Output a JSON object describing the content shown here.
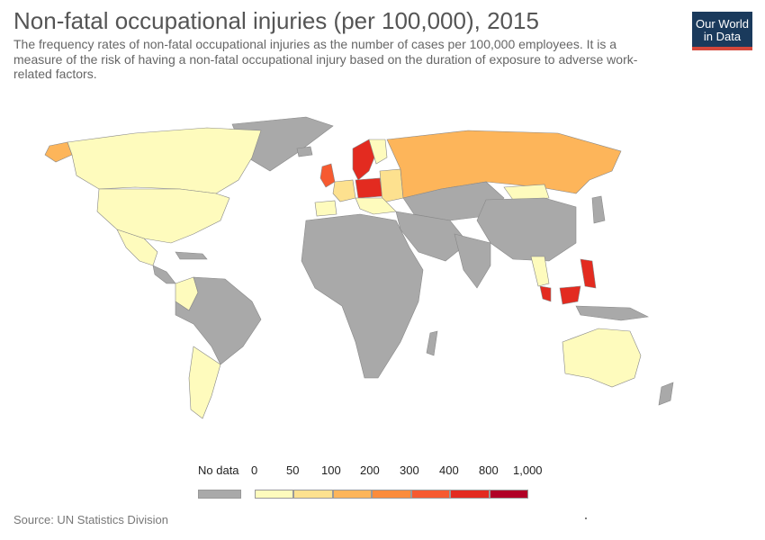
{
  "header": {
    "title": "Non-fatal occupational injuries (per 100,000), 2015",
    "subtitle": "The frequency rates of non-fatal occupational injuries as the number of cases per 100,000 employees. It is a measure of the risk of having a non-fatal occupational injury based on the duration of exposure to adverse work-related factors.",
    "logo_line1": "Our World",
    "logo_line2": "in Data"
  },
  "legend": {
    "no_data_label": "No data",
    "ticks": [
      "0",
      "50",
      "100",
      "200",
      "300",
      "400",
      "800",
      "1,000"
    ]
  },
  "colors": {
    "no_data": "#a9a9a9",
    "bins": [
      "#fefbbd",
      "#fde18f",
      "#fdb55a",
      "#fb8c3c",
      "#f65a30",
      "#e32b20",
      "#b10026"
    ],
    "logo_bg": "#1a3a5c",
    "logo_accent": "#d4473b"
  },
  "footer": {
    "source": "Source: UN Statistics Division"
  }
}
